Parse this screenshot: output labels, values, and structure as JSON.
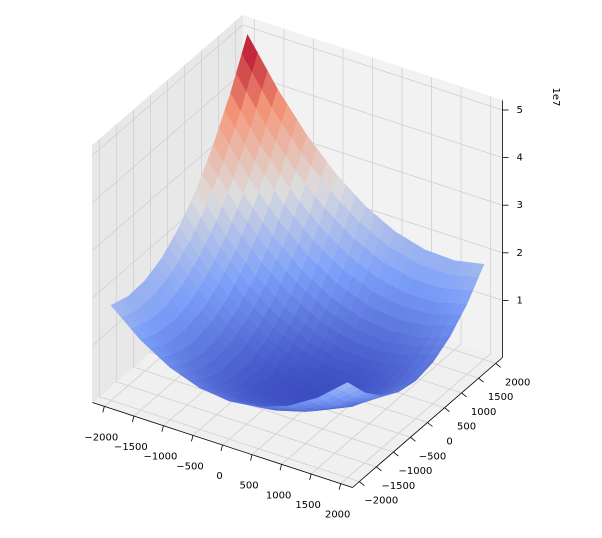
{
  "chart_data": {
    "type": "surface",
    "x": [
      -2000,
      -1500,
      -1000,
      -500,
      0,
      500,
      1000,
      1500,
      2000
    ],
    "y": [
      -2000,
      -1500,
      -1000,
      -500,
      0,
      500,
      1000,
      1500,
      2000
    ],
    "z": [
      [
        1.8,
        1.275,
        0.9,
        0.675,
        0.6,
        0.675,
        0.9,
        1.275,
        1.8
      ],
      [
        1.675,
        1.1,
        0.675,
        0.4,
        0.275,
        0.3,
        0.475,
        0.8,
        1.275
      ],
      [
        1.7,
        1.075,
        0.6,
        0.275,
        0.1,
        0.075,
        0.2,
        0.475,
        0.9
      ],
      [
        1.875,
        1.2,
        0.675,
        0.3,
        0.075,
        0,
        0.075,
        0.3,
        0.675
      ],
      [
        2.2,
        1.475,
        0.9,
        0.475,
        0.2,
        0.075,
        0.1,
        0.275,
        0.6
      ],
      [
        2.675,
        1.9,
        1.275,
        0.8,
        0.475,
        0.3,
        0.275,
        0.4,
        0.675
      ],
      [
        3.3,
        2.475,
        1.8,
        1.275,
        0.9,
        0.675,
        0.6,
        0.675,
        0.9
      ],
      [
        4.075,
        3.2,
        2.475,
        1.9,
        1.475,
        1.2,
        1.075,
        1.1,
        1.275
      ],
      [
        5,
        4.075,
        3.3,
        2.675,
        2.2,
        1.875,
        1.7,
        1.675,
        1.8
      ]
    ],
    "xlim": [
      -2200,
      2200
    ],
    "ylim": [
      -2200,
      2200
    ],
    "zlim": [
      -0.2,
      5.2
    ],
    "xticks": [
      {
        "value": -2000,
        "label": "−2000"
      },
      {
        "value": -1500,
        "label": "−1500"
      },
      {
        "value": -1000,
        "label": "−1000"
      },
      {
        "value": -500,
        "label": "−500"
      },
      0,
      500,
      1000,
      1500,
      2000
    ],
    "yticks": [
      {
        "value": -2000,
        "label": "−2000"
      },
      {
        "value": -1500,
        "label": "−1500"
      },
      {
        "value": -1000,
        "label": "−1000"
      },
      {
        "value": -500,
        "label": "−500"
      },
      0,
      500,
      1000,
      1500,
      2000
    ],
    "zticks": [
      1,
      2,
      3,
      4,
      5
    ],
    "z_offset_label": "1e7",
    "colormap": "coolwarm",
    "grid": true
  }
}
